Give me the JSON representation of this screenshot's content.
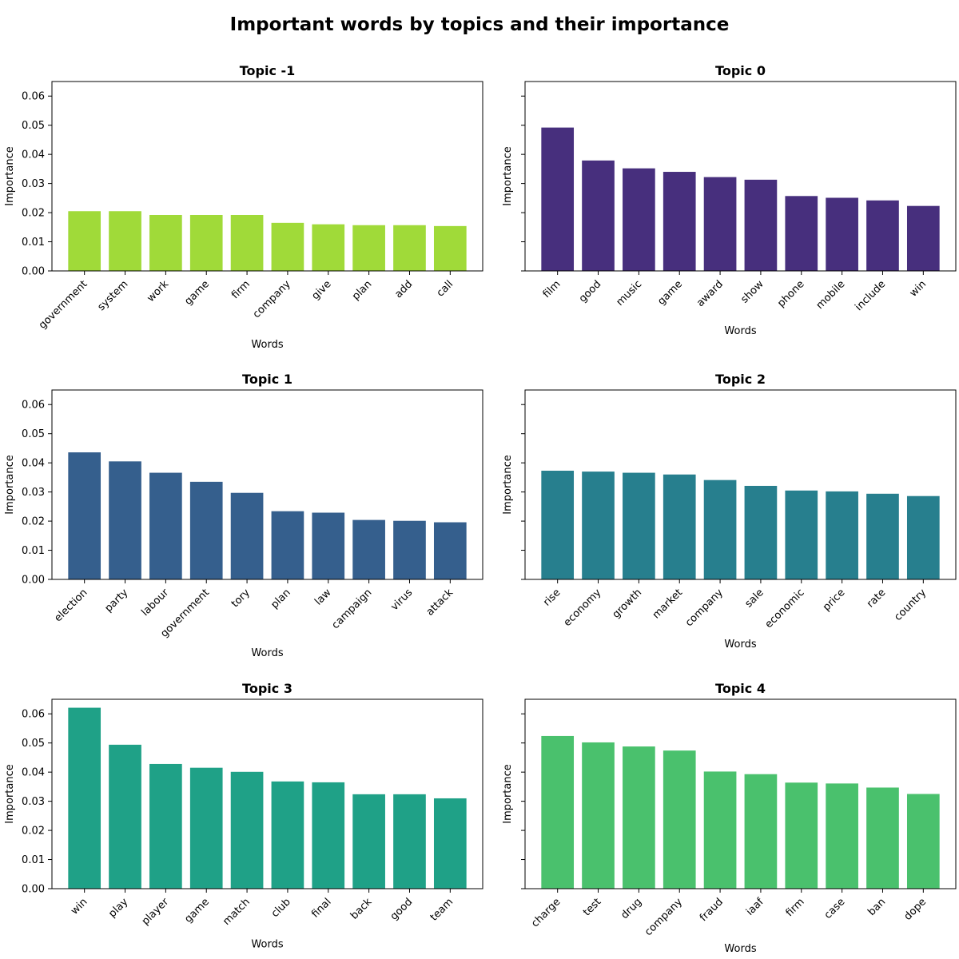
{
  "title": "Important words by topics and their importance",
  "chart_data": [
    {
      "type": "bar",
      "title": "Topic -1",
      "xlabel": "Words",
      "ylabel": "Importance",
      "color": "#a0da39",
      "ylim": [
        0,
        0.065
      ],
      "yticks": [
        "0.00",
        "0.01",
        "0.02",
        "0.03",
        "0.04",
        "0.05",
        "0.06"
      ],
      "show_ytick_labels": true,
      "categories": [
        "government",
        "system",
        "work",
        "game",
        "firm",
        "company",
        "give",
        "plan",
        "add",
        "call"
      ],
      "values": [
        0.0205,
        0.0205,
        0.0192,
        0.0192,
        0.0192,
        0.0165,
        0.016,
        0.0157,
        0.0157,
        0.0154
      ]
    },
    {
      "type": "bar",
      "title": "Topic 0",
      "xlabel": "Words",
      "ylabel": "Importance",
      "color": "#472f7d",
      "ylim": [
        0,
        0.065
      ],
      "yticks": [
        "0.00",
        "0.01",
        "0.02",
        "0.03",
        "0.04",
        "0.05",
        "0.06"
      ],
      "show_ytick_labels": false,
      "categories": [
        "film",
        "good",
        "music",
        "game",
        "award",
        "show",
        "phone",
        "mobile",
        "include",
        "win"
      ],
      "values": [
        0.0492,
        0.0379,
        0.0352,
        0.034,
        0.0322,
        0.0313,
        0.0257,
        0.0251,
        0.0242,
        0.0223
      ]
    },
    {
      "type": "bar",
      "title": "Topic 1",
      "xlabel": "Words",
      "ylabel": "Importance",
      "color": "#355f8d",
      "ylim": [
        0,
        0.065
      ],
      "yticks": [
        "0.00",
        "0.01",
        "0.02",
        "0.03",
        "0.04",
        "0.05",
        "0.06"
      ],
      "show_ytick_labels": true,
      "categories": [
        "election",
        "party",
        "labour",
        "government",
        "tory",
        "plan",
        "law",
        "campaign",
        "virus",
        "attack"
      ],
      "values": [
        0.0436,
        0.0405,
        0.0366,
        0.0335,
        0.0297,
        0.0234,
        0.0229,
        0.0204,
        0.0201,
        0.0196
      ]
    },
    {
      "type": "bar",
      "title": "Topic 2",
      "xlabel": "Words",
      "ylabel": "Importance",
      "color": "#277f8e",
      "ylim": [
        0,
        0.065
      ],
      "yticks": [
        "0.00",
        "0.01",
        "0.02",
        "0.03",
        "0.04",
        "0.05",
        "0.06"
      ],
      "show_ytick_labels": false,
      "categories": [
        "rise",
        "economy",
        "growth",
        "market",
        "company",
        "sale",
        "economic",
        "price",
        "rate",
        "country"
      ],
      "values": [
        0.0373,
        0.037,
        0.0366,
        0.036,
        0.0341,
        0.0321,
        0.0305,
        0.0302,
        0.0294,
        0.0286
      ]
    },
    {
      "type": "bar",
      "title": "Topic 3",
      "xlabel": "Words",
      "ylabel": "Importance",
      "color": "#1fa187",
      "ylim": [
        0,
        0.065
      ],
      "yticks": [
        "0.00",
        "0.01",
        "0.02",
        "0.03",
        "0.04",
        "0.05",
        "0.06"
      ],
      "show_ytick_labels": true,
      "categories": [
        "win",
        "play",
        "player",
        "game",
        "match",
        "club",
        "final",
        "back",
        "good",
        "team"
      ],
      "values": [
        0.0621,
        0.0494,
        0.0428,
        0.0415,
        0.0401,
        0.0368,
        0.0365,
        0.0324,
        0.0324,
        0.031
      ]
    },
    {
      "type": "bar",
      "title": "Topic 4",
      "xlabel": "Words",
      "ylabel": "Importance",
      "color": "#4ac16d",
      "ylim": [
        0,
        0.065
      ],
      "yticks": [
        "0.00",
        "0.01",
        "0.02",
        "0.03",
        "0.04",
        "0.05",
        "0.06"
      ],
      "show_ytick_labels": false,
      "categories": [
        "charge",
        "test",
        "drug",
        "company",
        "fraud",
        "iaaf",
        "firm",
        "case",
        "ban",
        "dope"
      ],
      "values": [
        0.0524,
        0.0502,
        0.0488,
        0.0474,
        0.0402,
        0.0393,
        0.0364,
        0.0361,
        0.0347,
        0.0325
      ]
    }
  ]
}
